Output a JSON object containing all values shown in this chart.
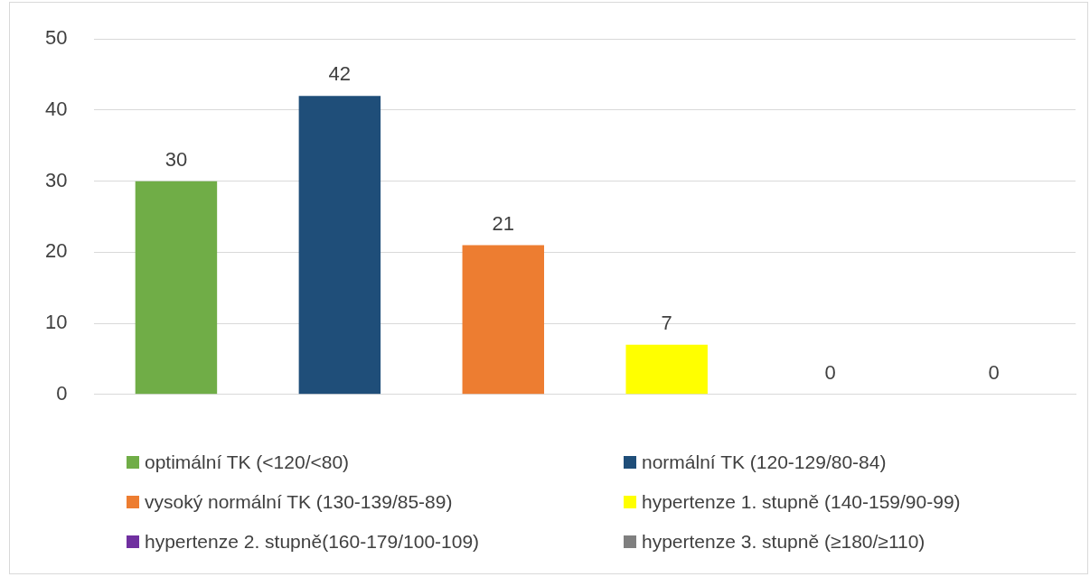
{
  "chart_data": {
    "type": "bar",
    "categories": [
      null,
      null,
      null,
      null,
      null,
      null
    ],
    "series": [
      {
        "name": "optimální TK (<120/<80)",
        "color": "#70ad47",
        "values": [
          30,
          null,
          null,
          null,
          null,
          null
        ]
      },
      {
        "name": "normální TK (120-129/80-84)",
        "color": "#1f4e79",
        "values": [
          null,
          42,
          null,
          null,
          null,
          null
        ]
      },
      {
        "name": "vysoký normální TK (130-139/85-89)",
        "color": "#ed7d31",
        "values": [
          null,
          null,
          21,
          null,
          null,
          null
        ]
      },
      {
        "name": "hypertenze 1. stupně (140-159/90-99)",
        "color": "#ffff00",
        "values": [
          null,
          null,
          null,
          7,
          null,
          null
        ]
      },
      {
        "name": "hypertenze 2. stupně(160-179/100-109)",
        "color": "#7030a0",
        "values": [
          null,
          null,
          null,
          null,
          0,
          null
        ]
      },
      {
        "name": "hypertenze 3. stupně (≥180/≥110)",
        "color": "#7f7f7f",
        "values": [
          null,
          null,
          null,
          null,
          null,
          0
        ]
      }
    ],
    "ylim": [
      0,
      50
    ],
    "yticks": [
      0,
      10,
      20,
      30,
      40,
      50
    ],
    "grid": "y",
    "legend": "bottom",
    "data_labels": true
  }
}
